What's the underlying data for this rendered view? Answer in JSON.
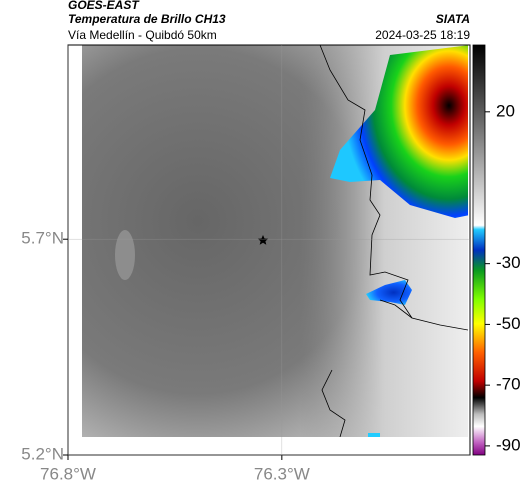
{
  "header": {
    "source": "GOES-EAST",
    "title": "Temperatura de Brillo CH13",
    "org": "SIATA",
    "region": "Vía Medellín - Quibdó 50km",
    "timestamp": "2024-03-25 18:19"
  },
  "map": {
    "xlim": [
      -76.8,
      -75.86
    ],
    "ylim": [
      5.2,
      6.15
    ],
    "xticks": [
      {
        "value": -76.8,
        "label": "76.8°W"
      },
      {
        "value": -76.3,
        "label": "76.3°W"
      }
    ],
    "yticks": [
      {
        "value": 5.7,
        "label": "5.7°N"
      },
      {
        "value": 5.2,
        "label": "5.2°N"
      }
    ]
  },
  "colorbar": {
    "lim": [
      42,
      -93
    ],
    "ticks": [
      20,
      -30,
      -50,
      -70,
      -90
    ]
  }
}
